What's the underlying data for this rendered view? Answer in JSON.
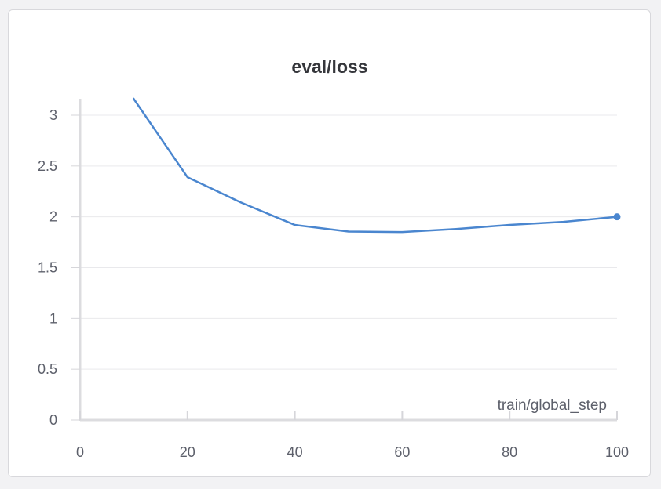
{
  "chart_data": {
    "type": "line",
    "title": "eval/loss",
    "xlabel": "train/global_step",
    "ylabel": "",
    "xlim": [
      0,
      100
    ],
    "ylim": [
      0,
      3.15
    ],
    "xticks": [
      0,
      20,
      40,
      60,
      80,
      100
    ],
    "xtick_labels": [
      "0",
      "20",
      "40",
      "60",
      "80",
      "100"
    ],
    "yticks": [
      0,
      0.5,
      1,
      1.5,
      2,
      2.5,
      3
    ],
    "ytick_labels": [
      "0",
      "0.5",
      "1",
      "1.5",
      "2",
      "2.5",
      "3"
    ],
    "grid": true,
    "series": [
      {
        "name": "eval/loss",
        "color": "#4a86cf",
        "x": [
          10,
          20,
          30,
          40,
          50,
          60,
          70,
          80,
          90,
          100
        ],
        "values": [
          3.16,
          2.39,
          2.14,
          1.92,
          1.855,
          1.85,
          1.88,
          1.92,
          1.95,
          2.0
        ]
      }
    ]
  }
}
